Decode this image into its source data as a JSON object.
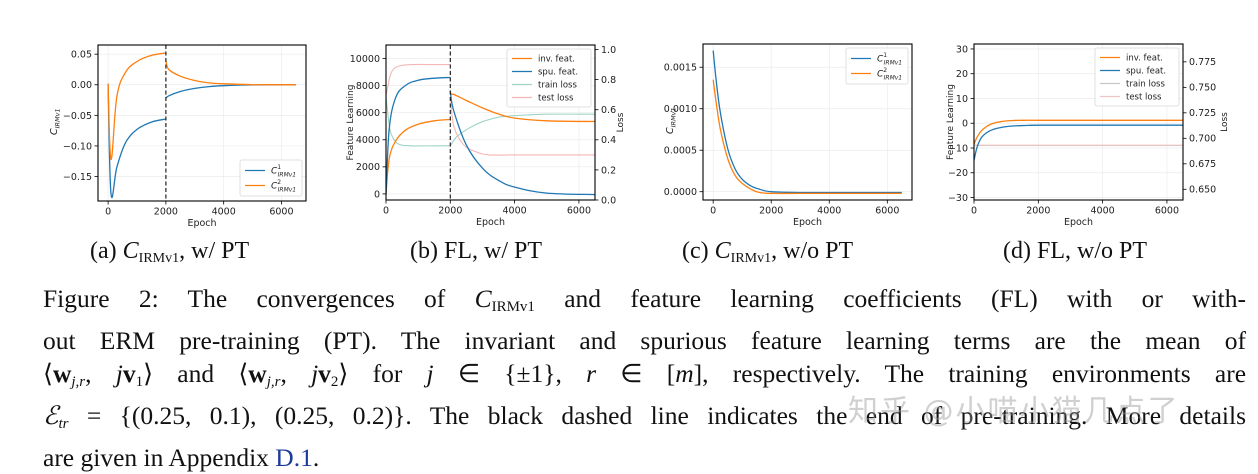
{
  "colors": {
    "blue": "#1f77b4",
    "orange": "#ff7f0e",
    "train_loss_b": "#9fd3c7",
    "test_loss_b": "#f4b6b6",
    "train_loss_d": "#c7c7c7",
    "test_loss_d": "#f0c4c4",
    "dashed": "#222222"
  },
  "subcaptions": {
    "a": {
      "prefix": "(a) ",
      "sym": "C",
      "sub": "IRMv1",
      "suffix": ", w/ PT"
    },
    "b": {
      "prefix": "(b) FL, w/ PT"
    },
    "c": {
      "prefix": "(c) ",
      "sym": "C",
      "sub": "IRMv1",
      "suffix": ", w/o PT"
    },
    "d": {
      "prefix": "(d) FL, w/o PT"
    }
  },
  "caption": {
    "line1_a": "Figure 2:  The convergences of ",
    "line1_sym": "C",
    "line1_sub": "IRMv1",
    "line1_b": " and feature learning coefficients (FL) with or with-",
    "line2": "out ERM pre-training (PT). The invariant and spurious feature learning terms are the mean of",
    "line3": "⟨w_{j,r}, jv₁⟩ and ⟨w_{j,r}, jv₂⟩ for j ∈ {±1}, r ∈ [m], respectively.  The training environments are",
    "line3_parts": [
      "⟨",
      "w",
      "j,r",
      ", ",
      "j",
      "v",
      "1",
      "⟩ and ⟨",
      "w",
      "j,r",
      ", ",
      "j",
      "v",
      "2",
      "⟩ for ",
      "j",
      " ∈ {±1}, ",
      "r",
      " ∈ [",
      "m",
      "], respectively.  The training environments are"
    ],
    "line4_a": "ℰ",
    "line4_sub": "tr",
    "line4_b": " = {(0.25, 0.1), (0.25, 0.2)}. The black dashed line indicates the end of pre-training. More details",
    "line5_a": "are given in Appendix ",
    "line5_link": "D.1",
    "line5_b": "."
  },
  "watermark": "知乎 @小喵小猫几点了",
  "chart_data": [
    {
      "id": "a",
      "type": "line",
      "title": "",
      "xlabel": "Epoch",
      "ylabel": "C_IRMv1",
      "xlim": [
        -350,
        6850
      ],
      "ylim": [
        -0.19,
        0.065
      ],
      "xticks": [
        0,
        2000,
        4000,
        6000
      ],
      "yticks": [
        0.05,
        0.0,
        -0.05,
        -0.1,
        -0.15
      ],
      "ytick_labels": [
        "0.05",
        "0.00",
        "−0.05",
        "−0.10",
        "−0.15"
      ],
      "grid": true,
      "vline": 2000,
      "legend": {
        "position": "lower right",
        "entries": [
          "C¹_IRMv1",
          "C²_IRMv1"
        ]
      },
      "series": [
        {
          "name": "C¹_IRMv1",
          "color": "blue",
          "x": [
            0,
            100,
            300,
            600,
            1000,
            1500,
            2000,
            2001,
            2100,
            2500,
            3000,
            3500,
            4000,
            5000,
            6500
          ],
          "y": [
            0.0,
            -0.178,
            -0.135,
            -0.095,
            -0.073,
            -0.061,
            -0.056,
            -0.022,
            -0.018,
            -0.011,
            -0.006,
            -0.003,
            -0.0015,
            -0.0003,
            0.0
          ]
        },
        {
          "name": "C²_IRMv1",
          "color": "orange",
          "x": [
            0,
            100,
            300,
            600,
            1000,
            1500,
            2000,
            2001,
            2100,
            2500,
            3000,
            3500,
            4000,
            5000,
            6500
          ],
          "y": [
            0.002,
            -0.122,
            -0.02,
            0.02,
            0.038,
            0.048,
            0.052,
            0.039,
            0.025,
            0.014,
            0.007,
            0.003,
            0.0015,
            0.0003,
            0.0
          ]
        }
      ]
    },
    {
      "id": "b",
      "type": "line",
      "title": "",
      "xlabel": "Epoch",
      "ylabel": "Feature Learning",
      "ylabel_right": "Loss",
      "xlim": [
        0,
        6500
      ],
      "ylim": [
        -450,
        11000
      ],
      "ylim_right": [
        0.0,
        1.03
      ],
      "xticks": [
        0,
        2000,
        4000,
        6000
      ],
      "yticks": [
        0,
        2000,
        4000,
        6000,
        8000,
        10000
      ],
      "yticks_right": [
        0.0,
        0.2,
        0.4,
        0.6,
        0.8,
        1.0
      ],
      "grid": true,
      "vline": 2000,
      "legend": {
        "position": "upper right",
        "entries": [
          "inv. feat.",
          "spu. feat.",
          "train loss",
          "test loss"
        ]
      },
      "series": [
        {
          "name": "inv. feat.",
          "color": "orange",
          "axis": "left",
          "x": [
            0,
            100,
            300,
            600,
            1000,
            1500,
            2000,
            2001,
            2100,
            2500,
            3000,
            3500,
            4000,
            5000,
            6500
          ],
          "y": [
            0,
            2600,
            3900,
            4700,
            5150,
            5400,
            5500,
            7300,
            7350,
            6900,
            6350,
            5900,
            5600,
            5400,
            5350
          ]
        },
        {
          "name": "spu. feat.",
          "color": "blue",
          "axis": "left",
          "x": [
            0,
            100,
            300,
            600,
            1000,
            1500,
            2000,
            2001,
            2100,
            2500,
            3000,
            3500,
            4000,
            5000,
            6500
          ],
          "y": [
            0,
            4800,
            7100,
            8000,
            8400,
            8550,
            8600,
            7600,
            6200,
            3600,
            1900,
            1000,
            500,
            60,
            -50
          ]
        },
        {
          "name": "train loss",
          "color": "train_loss_b",
          "axis": "right",
          "x": [
            0,
            100,
            200,
            400,
            800,
            1500,
            2000,
            2001,
            2200,
            2600,
            3000,
            3500,
            4000,
            5000,
            6500
          ],
          "y": [
            0.69,
            0.5,
            0.42,
            0.37,
            0.36,
            0.36,
            0.36,
            0.36,
            0.42,
            0.48,
            0.52,
            0.55,
            0.56,
            0.57,
            0.57
          ]
        },
        {
          "name": "test loss",
          "color": "test_loss_b",
          "axis": "right",
          "x": [
            0,
            100,
            200,
            400,
            800,
            1500,
            2000,
            2001,
            2100,
            2400,
            2800,
            3200,
            4000,
            5000,
            6500
          ],
          "y": [
            0.69,
            0.8,
            0.86,
            0.89,
            0.9,
            0.9,
            0.9,
            0.72,
            0.5,
            0.37,
            0.32,
            0.3,
            0.3,
            0.3,
            0.3
          ]
        }
      ]
    },
    {
      "id": "c",
      "type": "line",
      "title": "",
      "xlabel": "Epoch",
      "ylabel": "C_IRMv1",
      "xlim": [
        -350,
        6850
      ],
      "ylim": [
        -0.0001,
        0.00178
      ],
      "xticks": [
        0,
        2000,
        4000,
        6000
      ],
      "yticks": [
        0.0015,
        0.001,
        0.0005,
        0.0
      ],
      "ytick_labels": [
        "0.0015",
        "0.0010",
        "0.0005",
        "0.0000"
      ],
      "grid": true,
      "legend": {
        "position": "upper right",
        "entries": [
          "C¹_IRMv1",
          "C²_IRMv1"
        ]
      },
      "series": [
        {
          "name": "C¹_IRMv1",
          "color": "blue",
          "x": [
            0,
            100,
            250,
            500,
            750,
            1000,
            1300,
            1600,
            2000,
            3000,
            4000,
            5000,
            6500
          ],
          "y": [
            0.0017,
            0.00135,
            0.00095,
            0.00052,
            0.00028,
            0.00015,
            7e-05,
            3e-05,
            0.0,
            -1e-05,
            -1e-05,
            -1e-05,
            -1e-05
          ]
        },
        {
          "name": "C²_IRMv1",
          "color": "orange",
          "x": [
            0,
            100,
            250,
            500,
            750,
            1000,
            1300,
            1600,
            2000,
            3000,
            4000,
            5000,
            6500
          ],
          "y": [
            0.00135,
            0.00108,
            0.00075,
            0.0004,
            0.0002,
            0.0001,
            3e-05,
            -1e-05,
            -2e-05,
            -2e-05,
            -2e-05,
            -2e-05,
            -2e-05
          ]
        }
      ]
    },
    {
      "id": "d",
      "type": "line",
      "title": "",
      "xlabel": "Epoch",
      "ylabel": "Feature Learning",
      "ylabel_right": "Loss",
      "xlim": [
        0,
        6500
      ],
      "ylim": [
        -31,
        32
      ],
      "ylim_right": [
        0.6395,
        0.7925
      ],
      "xticks": [
        0,
        2000,
        4000,
        6000
      ],
      "yticks": [
        30,
        20,
        10,
        0,
        -10,
        -20,
        -30
      ],
      "ytick_labels": [
        "30",
        "20",
        "10",
        "0",
        "−10",
        "−20",
        "−30"
      ],
      "yticks_right": [
        0.775,
        0.75,
        0.725,
        0.7,
        0.675,
        0.65
      ],
      "ytick_labels_right": [
        "0.775",
        "0.750",
        "0.725",
        "0.700",
        "0.675",
        "0.650"
      ],
      "grid": true,
      "legend": {
        "position": "upper right",
        "entries": [
          "inv. feat.",
          "spu. feat.",
          "train loss",
          "test loss"
        ]
      },
      "series": [
        {
          "name": "inv. feat.",
          "color": "orange",
          "axis": "left",
          "x": [
            0,
            100,
            250,
            500,
            800,
            1200,
            1600,
            2000,
            4000,
            6500
          ],
          "y": [
            -8.5,
            -5.5,
            -2.8,
            -0.5,
            0.6,
            1.1,
            1.2,
            1.2,
            1.2,
            1.2
          ]
        },
        {
          "name": "spu. feat.",
          "color": "blue",
          "axis": "left",
          "x": [
            0,
            100,
            250,
            500,
            800,
            1200,
            1600,
            2000,
            4000,
            6500
          ],
          "y": [
            -15,
            -9.5,
            -5.5,
            -3,
            -1.8,
            -1.1,
            -0.9,
            -0.8,
            -0.8,
            -0.8
          ]
        },
        {
          "name": "train loss",
          "color": "train_loss_d",
          "axis": "right",
          "x": [
            0,
            6500
          ],
          "y": [
            0.693,
            0.693
          ]
        },
        {
          "name": "test loss",
          "color": "test_loss_d",
          "axis": "right",
          "x": [
            0,
            6500
          ],
          "y": [
            0.6932,
            0.6932
          ]
        }
      ]
    }
  ]
}
